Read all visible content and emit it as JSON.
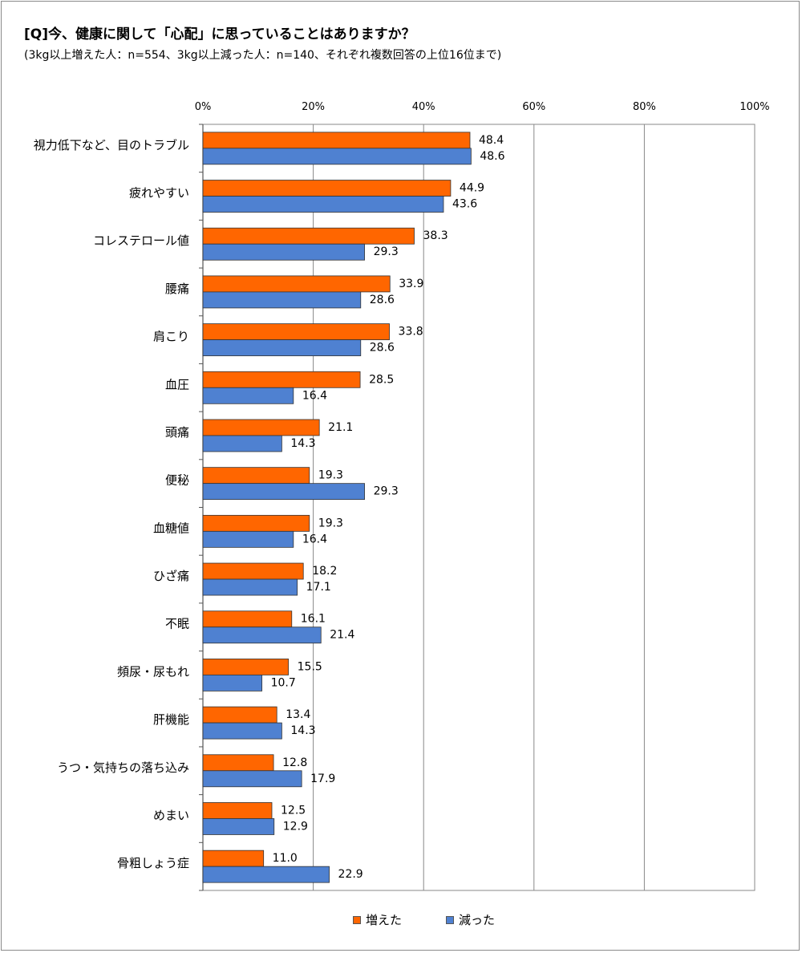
{
  "title": "[Q]今、健康に関して「心配」に思っていることはありますか？",
  "subtitle": "(3kg以上増えた人：n=554、3kg以上減った人：n=140、それぞれ複数回答の上位16位まで)",
  "colors": {
    "series1": "#FF6600",
    "series2": "#4F81D1",
    "grid": "#888888",
    "axis": "#555555"
  },
  "chart_data": {
    "type": "bar",
    "orientation": "horizontal",
    "xlim": [
      0,
      100
    ],
    "x_ticks": [
      "0%",
      "20%",
      "40%",
      "60%",
      "80%",
      "100%"
    ],
    "x_tick_values": [
      0,
      20,
      40,
      60,
      80,
      100
    ],
    "grid": true,
    "legend_position": "bottom",
    "categories": [
      "視力低下など、目のトラブル",
      "疲れやすい",
      "コレステロール値",
      "腰痛",
      "肩こり",
      "血圧",
      "頭痛",
      "便秘",
      "血糖値",
      "ひざ痛",
      "不眠",
      "頻尿・尿もれ",
      "肝機能",
      "うつ・気持ちの落ち込み",
      "めまい",
      "骨粗しょう症"
    ],
    "series": [
      {
        "name": "増えた",
        "values": [
          48.4,
          44.9,
          38.3,
          33.9,
          33.8,
          28.5,
          21.1,
          19.3,
          19.3,
          18.2,
          16.1,
          15.5,
          13.4,
          12.8,
          12.5,
          11.0
        ]
      },
      {
        "name": "減った",
        "values": [
          48.6,
          43.6,
          29.3,
          28.6,
          28.6,
          16.4,
          14.3,
          29.3,
          16.4,
          17.1,
          21.4,
          10.7,
          14.3,
          17.9,
          12.9,
          22.9
        ]
      }
    ]
  }
}
